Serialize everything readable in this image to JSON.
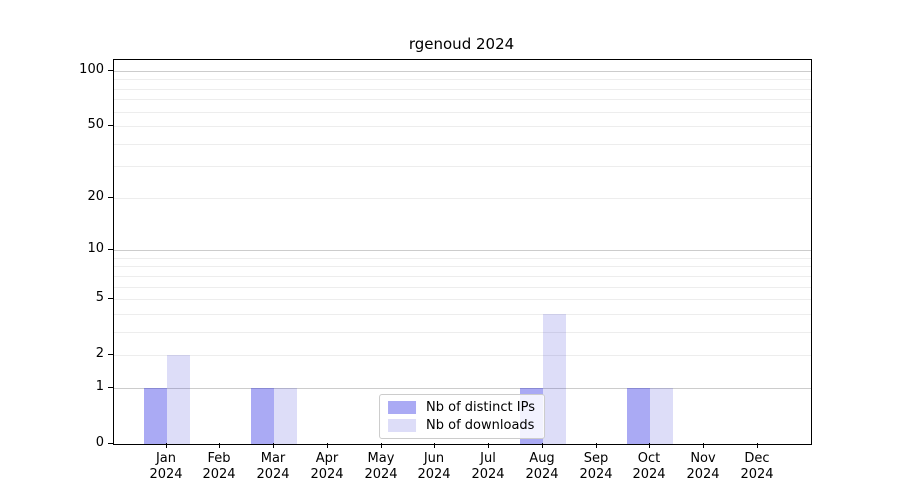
{
  "chart_data": {
    "type": "bar",
    "title": "rgenoud 2024",
    "categories": [
      "Jan",
      "Feb",
      "Mar",
      "Apr",
      "May",
      "Jun",
      "Jul",
      "Aug",
      "Sep",
      "Oct",
      "Nov",
      "Dec"
    ],
    "category_year": "2024",
    "series": [
      {
        "name": "Nb of distinct IPs",
        "color": "rgba(20,20,225,0.36)",
        "color_hex": "#aaaaf4",
        "values": [
          1,
          0,
          1,
          0,
          0,
          0,
          0,
          1,
          0,
          1,
          0,
          0
        ]
      },
      {
        "name": "Nb of downloads",
        "color": "rgba(20,20,207,0.145)",
        "color_hex": "#dcdcf8",
        "values": [
          2,
          0,
          1,
          0,
          0,
          0,
          0,
          4,
          0,
          1,
          0,
          0
        ]
      }
    ],
    "y_axis": {
      "scale": "log1p",
      "tick_values": [
        0,
        1,
        2,
        5,
        10,
        20,
        50,
        100
      ],
      "range": [
        0,
        100
      ],
      "grid": true
    },
    "x_axis": {
      "tick_labels": [
        "Jan 2024",
        "Feb 2024",
        "Mar 2024",
        "Apr 2024",
        "May 2024",
        "Jun 2024",
        "Jul 2024",
        "Aug 2024",
        "Sep 2024",
        "Oct 2024",
        "Nov 2024",
        "Dec 2024"
      ]
    },
    "legend": {
      "position": "lower-center",
      "entries": [
        "Nb of distinct IPs",
        "Nb of downloads"
      ]
    },
    "colors": {
      "major_grid": "#cccccc",
      "minor_grid": "#ededed",
      "axis": "#000000",
      "background": "#ffffff"
    }
  }
}
